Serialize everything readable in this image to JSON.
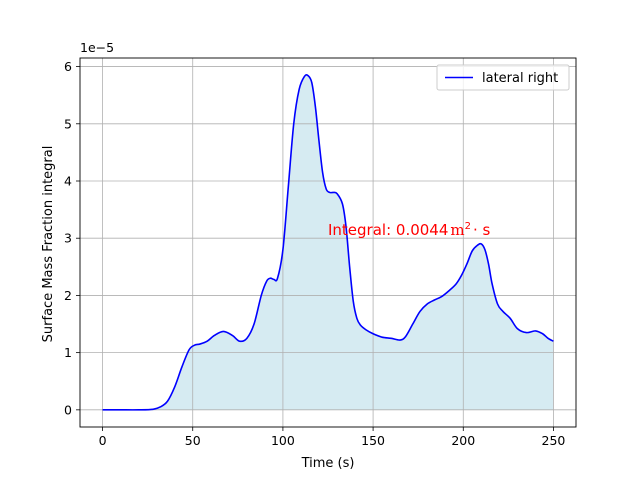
{
  "chart_data": {
    "type": "area",
    "xlabel": "Time (s)",
    "ylabel": "Surface Mass Fraction integral",
    "y_offset_label": "1e−5",
    "xlim": [
      -12.5,
      262.5
    ],
    "ylim": [
      -0.3,
      6.15
    ],
    "y_scale_exponent": -5,
    "x_ticks": [
      0,
      50,
      100,
      150,
      200,
      250
    ],
    "y_ticks": [
      0,
      1,
      2,
      3,
      4,
      5,
      6
    ],
    "x_tick_labels": [
      "0",
      "50",
      "100",
      "150",
      "200",
      "250"
    ],
    "y_tick_labels": [
      "0",
      "1",
      "2",
      "3",
      "4",
      "5",
      "6"
    ],
    "grid": true,
    "legend_position": "top-right",
    "annotation": {
      "prefix": "Integral: 0.0044",
      "unit_base": "m",
      "unit_power": "2",
      "unit_suffix": "· s",
      "x": 125,
      "y": 3.0,
      "color": "#ff0000"
    },
    "series": [
      {
        "name": "lateral right",
        "color": "#0000ff",
        "fill_color": "#add8e6",
        "x": [
          0,
          10,
          20,
          28,
          32,
          36,
          40,
          44,
          48,
          51,
          54,
          58,
          62,
          67,
          72,
          76,
          80,
          84,
          88,
          91,
          93,
          95,
          97,
          100,
          103,
          106,
          109,
          112,
          114,
          116,
          118,
          120,
          122,
          124,
          126,
          128,
          130,
          133,
          135,
          137,
          139,
          141,
          143,
          146,
          150,
          155,
          160,
          165,
          168,
          172,
          176,
          180,
          184,
          188,
          192,
          196,
          199,
          202,
          205,
          208,
          210,
          212,
          214,
          216,
          219,
          222,
          226,
          230,
          235,
          240,
          244,
          247,
          250
        ],
        "values": [
          0,
          0,
          0,
          0.01,
          0.05,
          0.15,
          0.4,
          0.75,
          1.05,
          1.13,
          1.15,
          1.2,
          1.3,
          1.37,
          1.3,
          1.2,
          1.25,
          1.5,
          2.0,
          2.25,
          2.3,
          2.28,
          2.3,
          2.8,
          3.9,
          5.0,
          5.6,
          5.83,
          5.84,
          5.72,
          5.3,
          4.7,
          4.15,
          3.86,
          3.8,
          3.8,
          3.78,
          3.6,
          3.2,
          2.5,
          1.9,
          1.6,
          1.48,
          1.4,
          1.33,
          1.27,
          1.25,
          1.22,
          1.28,
          1.5,
          1.72,
          1.85,
          1.92,
          1.98,
          2.08,
          2.2,
          2.35,
          2.55,
          2.78,
          2.88,
          2.9,
          2.8,
          2.55,
          2.2,
          1.85,
          1.72,
          1.6,
          1.42,
          1.35,
          1.38,
          1.33,
          1.25,
          1.2
        ]
      }
    ]
  }
}
